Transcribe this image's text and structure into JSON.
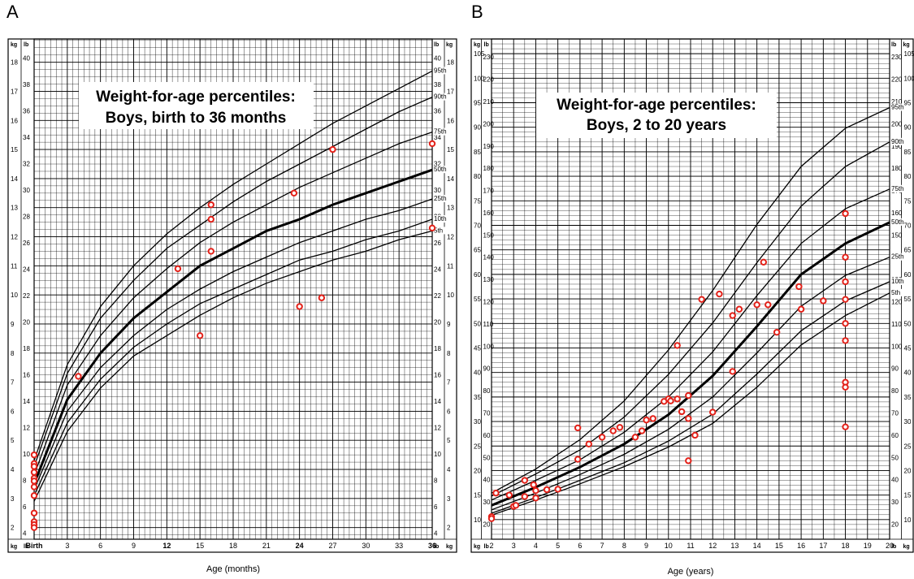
{
  "panels": {
    "a": {
      "letter": "A"
    },
    "b": {
      "letter": "B"
    }
  },
  "colors": {
    "point": "#e32119",
    "line": "#000000",
    "grid": "#000000"
  },
  "chart_data": [
    {
      "type": "line",
      "title_lines": [
        "Weight-for-age percentiles:",
        "Boys, birth to 36 months"
      ],
      "xlabel": "Age (months)",
      "x_ticks": [
        "Birth",
        "3",
        "6",
        "9",
        "12",
        "15",
        "18",
        "21",
        "24",
        "27",
        "30",
        "33",
        "36"
      ],
      "x_ticks_bold": [
        "Birth",
        "12",
        "24",
        "36"
      ],
      "xlim": [
        0,
        36
      ],
      "kg_ticks": [
        2,
        3,
        4,
        5,
        6,
        7,
        8,
        9,
        10,
        11,
        12,
        13,
        14,
        15,
        16,
        17,
        18
      ],
      "lb_ticks_left": [
        4,
        6,
        8,
        10,
        12,
        14,
        16,
        18,
        20,
        22,
        24,
        26,
        28,
        30,
        32,
        34,
        36,
        38,
        40
      ],
      "lb_ticks_right": [
        4,
        6,
        8,
        10,
        12,
        14,
        16,
        18,
        20,
        22,
        24,
        26,
        28,
        30,
        32,
        34,
        36,
        38,
        40
      ],
      "unit_kg": "kg",
      "unit_lb": "lb",
      "ylim_kg": [
        1.6,
        18.8
      ],
      "grid": true,
      "series": [
        {
          "name": "95th",
          "x": [
            0,
            3,
            6,
            9,
            12,
            15,
            18,
            21,
            24,
            27,
            30,
            33,
            36
          ],
          "y": [
            4.3,
            7.6,
            9.6,
            11.0,
            12.1,
            13.0,
            13.8,
            14.5,
            15.2,
            15.9,
            16.5,
            17.1,
            17.7
          ]
        },
        {
          "name": "90th",
          "x": [
            0,
            3,
            6,
            9,
            12,
            15,
            18,
            21,
            24,
            27,
            30,
            33,
            36
          ],
          "y": [
            4.1,
            7.3,
            9.2,
            10.5,
            11.6,
            12.4,
            13.2,
            13.9,
            14.5,
            15.1,
            15.7,
            16.3,
            16.8
          ]
        },
        {
          "name": "75th",
          "x": [
            0,
            3,
            6,
            9,
            12,
            15,
            18,
            21,
            24,
            27,
            30,
            33,
            36
          ],
          "y": [
            3.8,
            6.9,
            8.6,
            9.9,
            10.9,
            11.8,
            12.5,
            13.1,
            13.7,
            14.2,
            14.7,
            15.2,
            15.6
          ]
        },
        {
          "name": "50th",
          "x": [
            0,
            3,
            6,
            9,
            12,
            15,
            18,
            21,
            24,
            27,
            30,
            33,
            36
          ],
          "y": [
            3.5,
            6.4,
            8.0,
            9.2,
            10.1,
            11.0,
            11.6,
            12.2,
            12.6,
            13.1,
            13.5,
            13.9,
            14.3
          ]
        },
        {
          "name": "25th",
          "x": [
            0,
            3,
            6,
            9,
            12,
            15,
            18,
            21,
            24,
            27,
            30,
            33,
            36
          ],
          "y": [
            3.3,
            6.0,
            7.5,
            8.6,
            9.5,
            10.2,
            10.8,
            11.3,
            11.8,
            12.2,
            12.6,
            12.9,
            13.3
          ]
        },
        {
          "name": "10th",
          "x": [
            0,
            3,
            6,
            9,
            12,
            15,
            18,
            21,
            24,
            27,
            30,
            33,
            36
          ],
          "y": [
            3.1,
            5.6,
            7.1,
            8.2,
            9.0,
            9.7,
            10.2,
            10.7,
            11.2,
            11.5,
            11.9,
            12.2,
            12.6
          ]
        },
        {
          "name": "5th",
          "x": [
            0,
            3,
            6,
            9,
            12,
            15,
            18,
            21,
            24,
            27,
            30,
            33,
            36
          ],
          "y": [
            2.9,
            5.3,
            6.8,
            7.9,
            8.6,
            9.3,
            9.9,
            10.4,
            10.8,
            11.2,
            11.5,
            11.9,
            12.2
          ]
        }
      ],
      "points": [
        {
          "x": 4,
          "y": 7.2
        },
        {
          "x": 13,
          "y": 10.9
        },
        {
          "x": 16,
          "y": 13.1
        },
        {
          "x": 16,
          "y": 12.6
        },
        {
          "x": 16,
          "y": 11.5
        },
        {
          "x": 15,
          "y": 8.6
        },
        {
          "x": 23.5,
          "y": 13.5
        },
        {
          "x": 24,
          "y": 9.6
        },
        {
          "x": 26,
          "y": 9.9
        },
        {
          "x": 27,
          "y": 15.0
        },
        {
          "x": 36,
          "y": 15.2
        },
        {
          "x": 36,
          "y": 12.3
        },
        {
          "x": 0,
          "y": 4.5
        },
        {
          "x": 0,
          "y": 4.2
        },
        {
          "x": 0,
          "y": 4.1
        },
        {
          "x": 0,
          "y": 3.9
        },
        {
          "x": 0,
          "y": 3.7
        },
        {
          "x": 0,
          "y": 3.6
        },
        {
          "x": 0,
          "y": 3.4
        },
        {
          "x": 0,
          "y": 3.1
        },
        {
          "x": 0,
          "y": 2.5
        },
        {
          "x": 0,
          "y": 2.2
        },
        {
          "x": 0,
          "y": 2.1
        },
        {
          "x": 0,
          "y": 2.0
        }
      ]
    },
    {
      "type": "line",
      "title_lines": [
        "Weight-for-age percentiles:",
        "Boys, 2 to 20 years"
      ],
      "xlabel": "Age (years)",
      "x_ticks": [
        "2",
        "3",
        "4",
        "5",
        "6",
        "7",
        "8",
        "9",
        "10",
        "11",
        "12",
        "13",
        "14",
        "15",
        "16",
        "17",
        "18",
        "19",
        "20"
      ],
      "xlim": [
        2,
        20
      ],
      "kg_ticks": [
        10,
        15,
        20,
        25,
        30,
        35,
        40,
        45,
        50,
        55,
        60,
        65,
        70,
        75,
        80,
        85,
        90,
        95,
        100,
        105
      ],
      "lb_ticks_left": [
        20,
        30,
        40,
        50,
        60,
        70,
        80,
        90,
        100,
        110,
        120,
        130,
        140,
        150,
        160,
        170,
        180,
        190,
        200,
        210,
        220,
        230
      ],
      "lb_ticks_right": [
        20,
        30,
        40,
        50,
        60,
        70,
        80,
        90,
        100,
        110,
        120,
        130,
        140,
        150,
        160,
        170,
        180,
        190,
        200,
        210,
        220,
        230
      ],
      "unit_kg": "kg",
      "unit_lb": "lb",
      "ylim_kg": [
        6,
        108
      ],
      "grid": true,
      "series": [
        {
          "name": "95th",
          "x": [
            2,
            4,
            6,
            8,
            10,
            12,
            14,
            16,
            18,
            20
          ],
          "y": [
            15.4,
            20.3,
            26.3,
            34.2,
            44.6,
            56.7,
            70.2,
            82.0,
            89.8,
            94.0
          ]
        },
        {
          "name": "90th",
          "x": [
            2,
            4,
            6,
            8,
            10,
            12,
            14,
            16,
            18,
            20
          ],
          "y": [
            14.8,
            19.3,
            24.2,
            30.9,
            39.6,
            50.1,
            62.4,
            73.9,
            82.0,
            87.0
          ]
        },
        {
          "name": "75th",
          "x": [
            2,
            4,
            6,
            8,
            10,
            12,
            14,
            16,
            18,
            20
          ],
          "y": [
            14.0,
            18.0,
            22.2,
            27.8,
            35.0,
            44.2,
            55.7,
            66.3,
            73.4,
            77.4
          ]
        },
        {
          "name": "50th",
          "x": [
            2,
            4,
            6,
            8,
            10,
            12,
            14,
            16,
            18,
            20
          ],
          "y": [
            12.9,
            16.6,
            20.7,
            25.4,
            31.4,
            39.3,
            49.4,
            60.0,
            66.3,
            70.6
          ]
        },
        {
          "name": "25th",
          "x": [
            2,
            4,
            6,
            8,
            10,
            12,
            14,
            16,
            18,
            20
          ],
          "y": [
            12.0,
            15.4,
            19.2,
            23.3,
            28.4,
            35.0,
            44.0,
            53.5,
            59.8,
            63.5
          ]
        },
        {
          "name": "10th",
          "x": [
            2,
            4,
            6,
            8,
            10,
            12,
            14,
            16,
            18,
            20
          ],
          "y": [
            11.3,
            14.5,
            18.0,
            21.6,
            26.0,
            31.5,
            39.7,
            48.5,
            54.6,
            58.5
          ]
        },
        {
          "name": "5th",
          "x": [
            2,
            4,
            6,
            8,
            10,
            12,
            14,
            16,
            18,
            20
          ],
          "y": [
            10.9,
            14.0,
            17.3,
            20.8,
            24.8,
            29.6,
            37.0,
            45.6,
            51.6,
            56.2
          ]
        }
      ],
      "points": [
        {
          "x": 2,
          "y": 10.6
        },
        {
          "x": 2,
          "y": 10.2
        },
        {
          "x": 2.2,
          "y": 15.4
        },
        {
          "x": 2.8,
          "y": 15.0
        },
        {
          "x": 3,
          "y": 12.7
        },
        {
          "x": 3.1,
          "y": 12.9
        },
        {
          "x": 3.5,
          "y": 18.0
        },
        {
          "x": 3.5,
          "y": 14.7
        },
        {
          "x": 3.9,
          "y": 17.1
        },
        {
          "x": 4,
          "y": 15.9
        },
        {
          "x": 4,
          "y": 14.4
        },
        {
          "x": 4.5,
          "y": 16.1
        },
        {
          "x": 5,
          "y": 16.2
        },
        {
          "x": 5.9,
          "y": 28.7
        },
        {
          "x": 5.9,
          "y": 22.3
        },
        {
          "x": 6.4,
          "y": 25.4
        },
        {
          "x": 7,
          "y": 26.8
        },
        {
          "x": 7.5,
          "y": 28.1
        },
        {
          "x": 7.8,
          "y": 28.8
        },
        {
          "x": 8.5,
          "y": 26.8
        },
        {
          "x": 8.8,
          "y": 28.1
        },
        {
          "x": 9,
          "y": 30.3
        },
        {
          "x": 9.3,
          "y": 30.6
        },
        {
          "x": 9.8,
          "y": 34.1
        },
        {
          "x": 10,
          "y": 34.6
        },
        {
          "x": 10.1,
          "y": 34.2
        },
        {
          "x": 10.4,
          "y": 34.6
        },
        {
          "x": 10.4,
          "y": 45.5
        },
        {
          "x": 10.6,
          "y": 32.0
        },
        {
          "x": 10.9,
          "y": 35.3
        },
        {
          "x": 10.9,
          "y": 30.6
        },
        {
          "x": 10.9,
          "y": 22.0
        },
        {
          "x": 11.2,
          "y": 27.2
        },
        {
          "x": 11.5,
          "y": 54.9
        },
        {
          "x": 12,
          "y": 31.9
        },
        {
          "x": 12.3,
          "y": 56.0
        },
        {
          "x": 12.9,
          "y": 51.6
        },
        {
          "x": 13.2,
          "y": 52.9
        },
        {
          "x": 12.9,
          "y": 40.2
        },
        {
          "x": 14,
          "y": 53.8
        },
        {
          "x": 14.3,
          "y": 62.5
        },
        {
          "x": 14.5,
          "y": 53.8
        },
        {
          "x": 14.9,
          "y": 48.2
        },
        {
          "x": 15.9,
          "y": 57.5
        },
        {
          "x": 16,
          "y": 52.9
        },
        {
          "x": 17,
          "y": 54.6
        },
        {
          "x": 18,
          "y": 72.4
        },
        {
          "x": 18,
          "y": 63.5
        },
        {
          "x": 18,
          "y": 58.5
        },
        {
          "x": 18,
          "y": 54.9
        },
        {
          "x": 18,
          "y": 50.0
        },
        {
          "x": 18,
          "y": 46.5
        },
        {
          "x": 18,
          "y": 38.0
        },
        {
          "x": 18,
          "y": 37.0
        },
        {
          "x": 18,
          "y": 28.9
        }
      ]
    }
  ]
}
